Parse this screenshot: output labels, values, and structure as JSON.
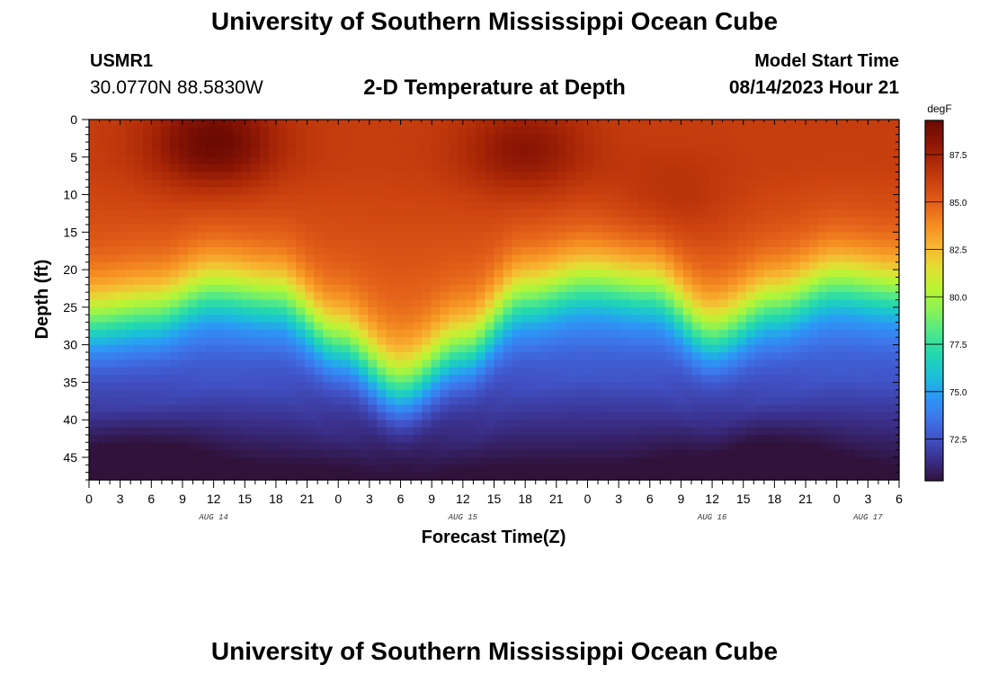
{
  "header": {
    "title": "University of Southern Mississippi Ocean Cube",
    "station": "USMR1",
    "coords": "30.0770N  88.5830W",
    "subtitle": "2-D Temperature at Depth",
    "model_start_label": "Model Start Time",
    "model_start_value": "08/14/2023 Hour 21"
  },
  "footer": {
    "title": "University of Southern Mississippi Ocean Cube"
  },
  "chart_data": {
    "type": "heatmap",
    "title": "2-D Temperature at Depth",
    "xlabel": "Forecast Time(Z)",
    "ylabel": "Depth (ft)",
    "colorbar_label": "degF",
    "x_hours_range": [
      0,
      78
    ],
    "y_depth_range": [
      0,
      48
    ],
    "x_tick_labels": [
      "0",
      "3",
      "6",
      "9",
      "12",
      "15",
      "18",
      "21",
      "0",
      "3",
      "6",
      "9",
      "12",
      "15",
      "18",
      "21",
      "0",
      "3",
      "6",
      "9",
      "12",
      "15",
      "18",
      "21",
      "0",
      "3",
      "6"
    ],
    "y_ticks": [
      0,
      5,
      10,
      15,
      20,
      25,
      30,
      35,
      40,
      45
    ],
    "date_labels": [
      {
        "label": "AUG 14",
        "hour": 12
      },
      {
        "label": "AUG 15",
        "hour": 36
      },
      {
        "label": "AUG 16",
        "hour": 60
      },
      {
        "label": "AUG 17",
        "hour": 75
      }
    ],
    "colorbar": {
      "min": 70.3,
      "max": 89.3,
      "ticks": [
        "72.5",
        "75.0",
        "77.5",
        "80.0",
        "82.5",
        "85.0",
        "87.5"
      ],
      "colors": [
        "#30123b",
        "#3a2f8a",
        "#4152c6",
        "#3d78ec",
        "#2b9af5",
        "#1bc1d6",
        "#24d8af",
        "#4ee88a",
        "#86f25a",
        "#b7f535",
        "#e1e034",
        "#f7b732",
        "#f58f22",
        "#e5641a",
        "#cd4410",
        "#ae2a07",
        "#8a1505",
        "#6a0a03"
      ]
    },
    "thermocline_depth_ft_by_hour": [
      [
        0,
        27
      ],
      [
        6,
        26
      ],
      [
        12,
        23
      ],
      [
        18,
        24
      ],
      [
        24,
        30
      ],
      [
        30,
        36
      ],
      [
        36,
        31
      ],
      [
        42,
        24
      ],
      [
        48,
        22
      ],
      [
        54,
        23
      ],
      [
        60,
        29
      ],
      [
        66,
        25
      ],
      [
        72,
        22
      ],
      [
        78,
        23
      ]
    ],
    "surface_hot_spots": [
      {
        "hour": 12,
        "depth_ft": 3,
        "value_degF": 89.3
      },
      {
        "hour": 42,
        "depth_ft": 4,
        "value_degF": 88.2
      },
      {
        "hour": 56,
        "depth_ft": 11,
        "value_degF": 87.0
      }
    ],
    "bottom_cold_spots": [
      {
        "hour": 4,
        "depth_ft": 48,
        "value_degF": 70.5
      },
      {
        "hour": 64,
        "depth_ft": 48,
        "value_degF": 70.5
      }
    ],
    "surface_temp_range_degF": [
      85.8,
      89.3
    ],
    "bottom_temp_range_degF": [
      70.5,
      75.8
    ]
  }
}
